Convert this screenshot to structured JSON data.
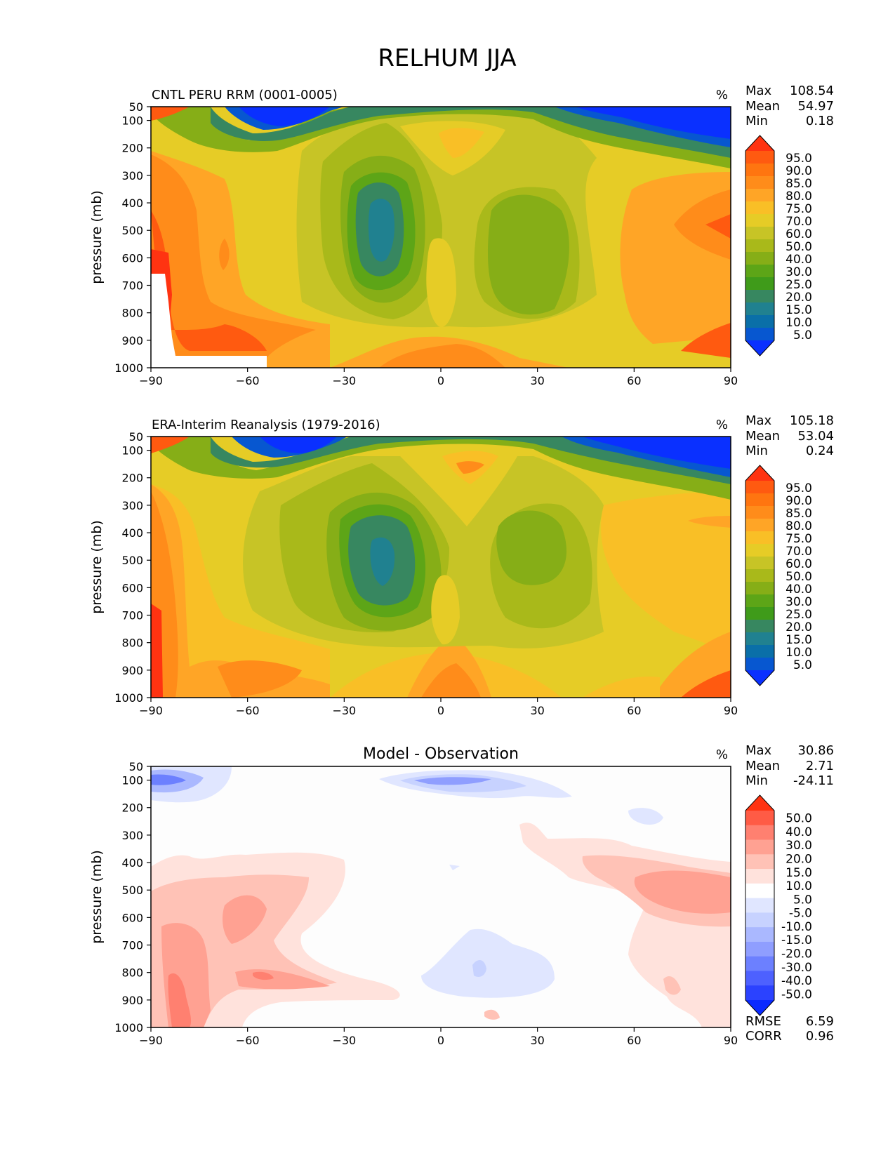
{
  "figure": {
    "title": "RELHUM JJA",
    "ylabel": "pressure (mb)",
    "units": "%",
    "stat_labels": [
      "Max",
      "Mean",
      "Min"
    ],
    "x_ticks": [
      "−90",
      "−60",
      "−30",
      "0",
      "30",
      "60",
      "90"
    ],
    "y_ticks": [
      "50",
      "100",
      "200",
      "300",
      "400",
      "500",
      "600",
      "700",
      "800",
      "900",
      "1000"
    ]
  },
  "colorbar_main": {
    "labels": [
      "95.0",
      "90.0",
      "85.0",
      "80.0",
      "75.0",
      "70.0",
      "60.0",
      "50.0",
      "40.0",
      "30.0",
      "25.0",
      "20.0",
      "15.0",
      "10.0",
      "5.0"
    ],
    "colors": [
      "#ff3311",
      "#ff5a10",
      "#ff7510",
      "#ff8c1a",
      "#ffa526",
      "#f9bf26",
      "#e6cc26",
      "#c7c426",
      "#a9b91a",
      "#86ae17",
      "#5da517",
      "#3f9b1a",
      "#378760",
      "#208190",
      "#0a6fa8",
      "#0757d0",
      "#0a30ff"
    ]
  },
  "colorbar_diff": {
    "labels": [
      "50.0",
      "40.0",
      "30.0",
      "20.0",
      "15.0",
      "10.0",
      "5.0",
      "-5.0",
      "-10.0",
      "-15.0",
      "-20.0",
      "-30.0",
      "-40.0",
      "-50.0"
    ],
    "colors": [
      "#ff3311",
      "#ff5b45",
      "#ff8070",
      "#ffa192",
      "#ffc2b6",
      "#ffe2dc",
      "#ffffff",
      "#e0e6ff",
      "#c7d2ff",
      "#aab8ff",
      "#8f9eff",
      "#6c80ff",
      "#4d61ff",
      "#2b42ff",
      "#0a2aff"
    ]
  },
  "chart_data": [
    {
      "type": "contour",
      "title": "CNTL PERU RRM (0001-0005)",
      "xlabel": "",
      "ylabel": "pressure (mb)",
      "xlim": [
        -90,
        90
      ],
      "ylim": [
        1000,
        50
      ],
      "units": "%",
      "stats": {
        "Max": "108.54",
        "Mean": "54.97",
        "Min": "0.18"
      }
    },
    {
      "type": "contour",
      "title": "ERA-Interim Reanalysis (1979-2016)",
      "xlabel": "",
      "ylabel": "pressure (mb)",
      "xlim": [
        -90,
        90
      ],
      "ylim": [
        1000,
        50
      ],
      "units": "%",
      "stats": {
        "Max": "105.18",
        "Mean": "53.04",
        "Min": "0.24"
      }
    },
    {
      "type": "contour",
      "title": "Model - Observation",
      "xlabel": "",
      "ylabel": "pressure (mb)",
      "xlim": [
        -90,
        90
      ],
      "ylim": [
        1000,
        50
      ],
      "units": "%",
      "stats": {
        "Max": "30.86",
        "Mean": "2.71",
        "Min": "-24.11"
      },
      "extra": {
        "RMSE": "6.59",
        "CORR": "0.96"
      }
    }
  ]
}
